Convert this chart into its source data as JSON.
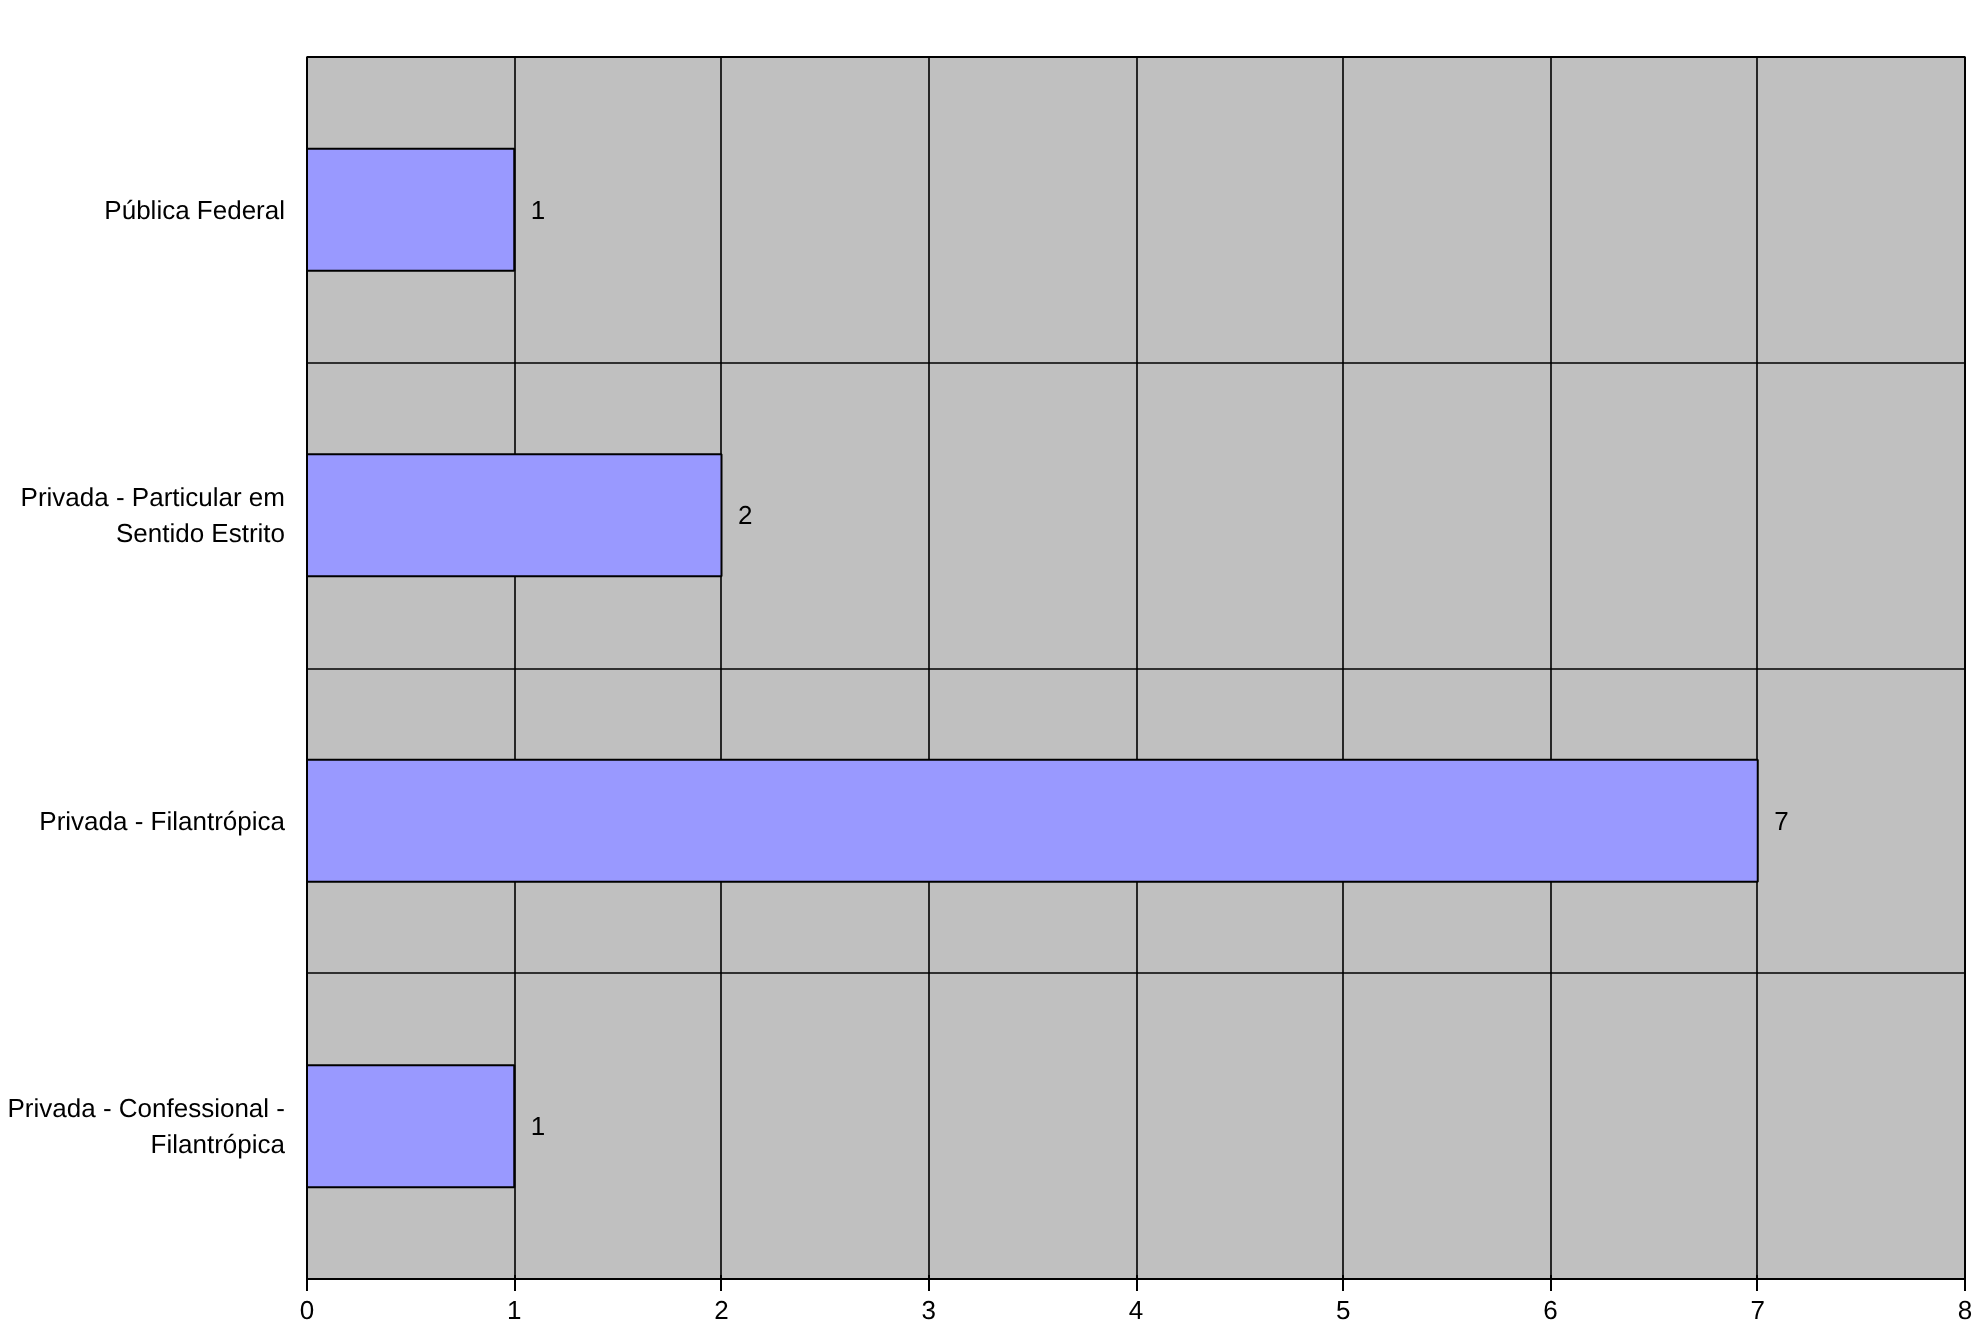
{
  "chart_data": {
    "type": "bar",
    "orientation": "horizontal",
    "categories": [
      "Pública Federal",
      "Privada - Particular em Sentido Estrito",
      "Privada - Filantrópica",
      "Privada - Confessional - Filantrópica"
    ],
    "values": [
      1,
      2,
      7,
      1
    ],
    "color": "#9999ff",
    "xlim": [
      0,
      8
    ],
    "xticks": [
      0,
      1,
      2,
      3,
      4,
      5,
      6,
      7,
      8
    ],
    "grid": true,
    "data_labels": true
  }
}
